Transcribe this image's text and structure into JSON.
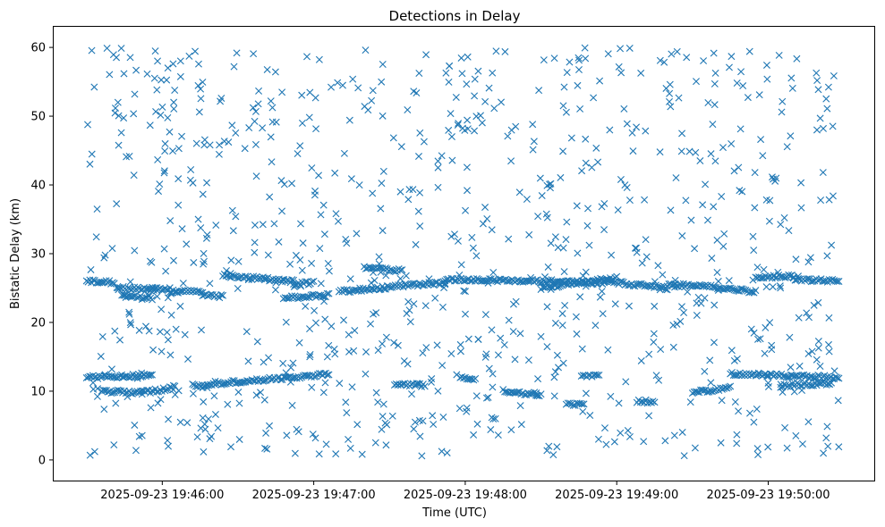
{
  "chart_data": {
    "type": "scatter",
    "title": "Detections in Delay",
    "xlabel": "Time (UTC)",
    "ylabel": "Bistatic Delay (km)",
    "marker": "x",
    "color": "#1f77b4",
    "grid": false,
    "legend": "none",
    "x_start": "2025-09-23 19:45:30",
    "x_end": "2025-09-23 19:50:28",
    "xlim": [
      "2025-09-23 19:45:17",
      "2025-09-23 19:50:42"
    ],
    "ylim": [
      -3,
      63
    ],
    "x_ticks": [
      {
        "value": "2025-09-23 19:46:00",
        "label": "2025-09-23 19:46:00"
      },
      {
        "value": "2025-09-23 19:47:00",
        "label": "2025-09-23 19:47:00"
      },
      {
        "value": "2025-09-23 19:48:00",
        "label": "2025-09-23 19:48:00"
      },
      {
        "value": "2025-09-23 19:49:00",
        "label": "2025-09-23 19:49:00"
      },
      {
        "value": "2025-09-23 19:50:00",
        "label": "2025-09-23 19:50:00"
      }
    ],
    "y_ticks": [
      {
        "value": 0,
        "label": "0"
      },
      {
        "value": 10,
        "label": "10"
      },
      {
        "value": 20,
        "label": "20"
      },
      {
        "value": 30,
        "label": "30"
      },
      {
        "value": 40,
        "label": "40"
      },
      {
        "value": 50,
        "label": "50"
      },
      {
        "value": 60,
        "label": "60"
      }
    ],
    "tracks": [
      {
        "from": "2025-09-23 19:45:30",
        "to": "2025-09-23 19:45:41",
        "delay_start": 26.0,
        "delay_end": 25.8
      },
      {
        "from": "2025-09-23 19:45:42",
        "to": "2025-09-23 19:46:03",
        "delay_start": 25.0,
        "delay_end": 24.8
      },
      {
        "from": "2025-09-23 19:45:44",
        "to": "2025-09-23 19:45:56",
        "delay_start": 23.8,
        "delay_end": 23.5
      },
      {
        "from": "2025-09-23 19:46:03",
        "to": "2025-09-23 19:46:16",
        "delay_start": 24.5,
        "delay_end": 24.5
      },
      {
        "from": "2025-09-23 19:46:16",
        "to": "2025-09-23 19:46:24",
        "delay_start": 24.0,
        "delay_end": 23.8
      },
      {
        "from": "2025-09-23 19:46:24",
        "to": "2025-09-23 19:46:52",
        "delay_start": 26.8,
        "delay_end": 26.0
      },
      {
        "from": "2025-09-23 19:46:52",
        "to": "2025-09-23 19:47:00",
        "delay_start": 25.5,
        "delay_end": 25.8
      },
      {
        "from": "2025-09-23 19:46:48",
        "to": "2025-09-23 19:47:06",
        "delay_start": 23.5,
        "delay_end": 24.0
      },
      {
        "from": "2025-09-23 19:47:10",
        "to": "2025-09-23 19:47:52",
        "delay_start": 24.5,
        "delay_end": 25.8
      },
      {
        "from": "2025-09-23 19:47:20",
        "to": "2025-09-23 19:47:35",
        "delay_start": 28.0,
        "delay_end": 27.5
      },
      {
        "from": "2025-09-23 19:47:52",
        "to": "2025-09-23 19:48:55",
        "delay_start": 26.3,
        "delay_end": 25.8
      },
      {
        "from": "2025-09-23 19:48:30",
        "to": "2025-09-23 19:49:00",
        "delay_start": 25.0,
        "delay_end": 26.5
      },
      {
        "from": "2025-09-23 19:48:55",
        "to": "2025-09-23 19:49:20",
        "delay_start": 26.0,
        "delay_end": 25.0
      },
      {
        "from": "2025-09-23 19:49:20",
        "to": "2025-09-23 19:49:38",
        "delay_start": 25.5,
        "delay_end": 25.2
      },
      {
        "from": "2025-09-23 19:49:38",
        "to": "2025-09-23 19:49:55",
        "delay_start": 25.0,
        "delay_end": 24.5
      },
      {
        "from": "2025-09-23 19:49:55",
        "to": "2025-09-23 19:50:10",
        "delay_start": 26.5,
        "delay_end": 26.8
      },
      {
        "from": "2025-09-23 19:50:10",
        "to": "2025-09-23 19:50:28",
        "delay_start": 26.3,
        "delay_end": 26.0
      },
      {
        "from": "2025-09-23 19:45:30",
        "to": "2025-09-23 19:45:56",
        "delay_start": 12.0,
        "delay_end": 12.3
      },
      {
        "from": "2025-09-23 19:45:36",
        "to": "2025-09-23 19:45:52",
        "delay_start": 10.0,
        "delay_end": 9.8
      },
      {
        "from": "2025-09-23 19:45:52",
        "to": "2025-09-23 19:46:05",
        "delay_start": 9.8,
        "delay_end": 10.5
      },
      {
        "from": "2025-09-23 19:46:12",
        "to": "2025-09-23 19:47:06",
        "delay_start": 10.8,
        "delay_end": 12.5
      },
      {
        "from": "2025-09-23 19:47:32",
        "to": "2025-09-23 19:47:44",
        "delay_start": 11.0,
        "delay_end": 10.8
      },
      {
        "from": "2025-09-23 19:47:58",
        "to": "2025-09-23 19:48:04",
        "delay_start": 12.0,
        "delay_end": 11.8
      },
      {
        "from": "2025-09-23 19:48:15",
        "to": "2025-09-23 19:48:30",
        "delay_start": 10.0,
        "delay_end": 9.5
      },
      {
        "from": "2025-09-23 19:48:40",
        "to": "2025-09-23 19:48:47",
        "delay_start": 8.0,
        "delay_end": 8.2
      },
      {
        "from": "2025-09-23 19:48:46",
        "to": "2025-09-23 19:48:53",
        "delay_start": 12.2,
        "delay_end": 12.2
      },
      {
        "from": "2025-09-23 19:49:08",
        "to": "2025-09-23 19:49:15",
        "delay_start": 8.5,
        "delay_end": 8.5
      },
      {
        "from": "2025-09-23 19:49:30",
        "to": "2025-09-23 19:49:45",
        "delay_start": 9.8,
        "delay_end": 10.5
      },
      {
        "from": "2025-09-23 19:49:45",
        "to": "2025-09-23 19:50:28",
        "delay_start": 12.5,
        "delay_end": 12.0
      },
      {
        "from": "2025-09-23 19:50:05",
        "to": "2025-09-23 19:50:25",
        "delay_start": 10.8,
        "delay_end": 11.2
      }
    ]
  }
}
